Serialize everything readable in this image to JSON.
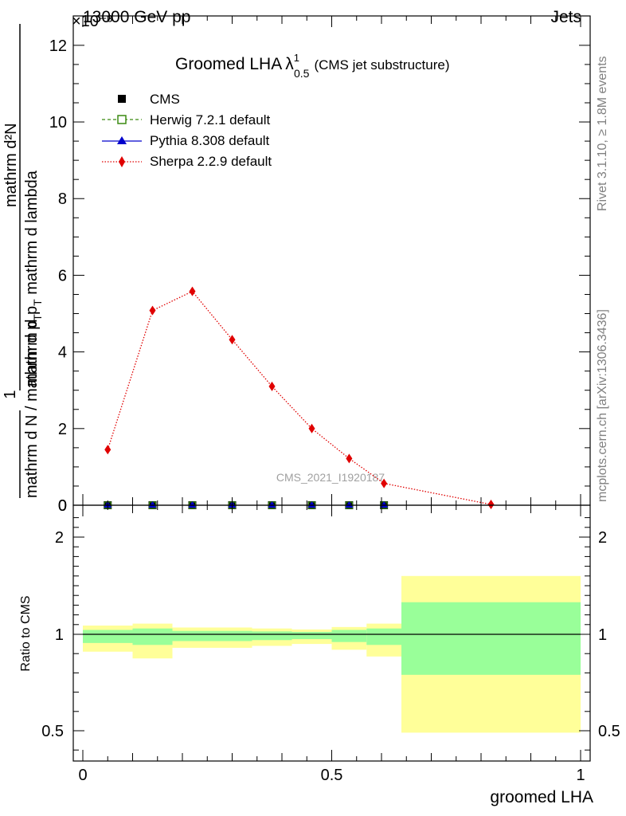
{
  "header": {
    "collision": "13000 GeV pp",
    "process": "Jets",
    "exponent_label": "×10⁻³"
  },
  "side_labels": {
    "rivet": "Rivet 3.1.10, ≥ 1.8M events",
    "mcplots": "mcplots.cern.ch [arXiv:1306.3436]"
  },
  "watermark": "CMS_2021_I1920187",
  "chart_data": [
    {
      "type": "line",
      "title": "Groomed LHA",
      "title_symbol": "λ",
      "title_sup": "1",
      "title_sub": "0.5",
      "subtitle": "(CMS jet substructure)",
      "ylabel_numerator": "mathrm d²N",
      "ylabel_numerator_sub": "mathrm d p",
      "ylabel_numerator_sub2": "T",
      "ylabel_numerator_tail": " mathrm d lambda",
      "ylabel_denominator": "mathrm d N / mathrm d p",
      "ylabel_denominator_sub": "T",
      "ylabel_one": "1",
      "ylabel_full": "1/(mathrm d N / mathrm d p_T) mathrm d²N/(mathrm d p_T mathrm d lambda)",
      "xlim": [
        0,
        1
      ],
      "ylim": [
        0,
        12.6
      ],
      "ytick_values": [
        0,
        2,
        4,
        6,
        8,
        10,
        12
      ],
      "ytick_labels": [
        "0",
        "2",
        "4",
        "6",
        "8",
        "10",
        "12"
      ],
      "legend_position": "top-left",
      "bin_edges": [
        0.0,
        0.1,
        0.18,
        0.26,
        0.34,
        0.42,
        0.5,
        0.57,
        0.64,
        1.0
      ],
      "series": [
        {
          "name": "CMS",
          "style": "data",
          "color": "#000000",
          "x": [
            0.05,
            0.14,
            0.22,
            0.3,
            0.38,
            0.46,
            0.535,
            0.605
          ],
          "values": [
            0.0,
            0.0,
            0.0,
            0.0,
            0.0,
            0.0,
            0.0,
            0.0
          ]
        },
        {
          "name": "Herwig 7.2.1 default",
          "style": "open-square-dashed",
          "color": "#3a8a10",
          "x": [
            0.05,
            0.14,
            0.22,
            0.3,
            0.38,
            0.46,
            0.535,
            0.605
          ],
          "values": [
            0.0,
            0.0,
            0.0,
            0.0,
            0.0,
            0.0,
            0.0,
            0.0
          ]
        },
        {
          "name": "Pythia 8.308 default",
          "style": "triangle-solid",
          "color": "#0000cc",
          "x": [
            0.05,
            0.14,
            0.22,
            0.3,
            0.38,
            0.46,
            0.535,
            0.605
          ],
          "values": [
            0.0,
            0.0,
            0.0,
            0.0,
            0.0,
            0.0,
            0.0,
            0.0
          ]
        },
        {
          "name": "Sherpa 2.2.9 default",
          "style": "diamond-dotted",
          "color": "#e00000",
          "x": [
            0.05,
            0.14,
            0.22,
            0.3,
            0.38,
            0.46,
            0.535,
            0.605,
            0.82
          ],
          "values": [
            1.45,
            5.08,
            5.58,
            4.32,
            3.1,
            2.0,
            1.22,
            0.57,
            0.02
          ]
        }
      ]
    },
    {
      "type": "area",
      "title": "ratio panel",
      "ylabel": "Ratio to CMS",
      "xlabel": "groomed LHA",
      "xlim": [
        0,
        1
      ],
      "ylim": [
        0.35,
        2.25
      ],
      "ytick_values": [
        0.5,
        1,
        2
      ],
      "ytick_labels": [
        "0.5",
        "1",
        "2"
      ],
      "xtick_values": [
        0,
        0.5,
        1
      ],
      "xtick_labels": [
        "0",
        "0.5",
        "1"
      ],
      "reference_line": 1,
      "bins": [
        {
          "lo": 0.0,
          "hi": 0.1,
          "stat": [
            0.955,
            1.045
          ],
          "total": [
            0.91,
            1.09
          ]
        },
        {
          "lo": 0.1,
          "hi": 0.18,
          "stat": [
            0.945,
            1.06
          ],
          "total": [
            0.875,
            1.11
          ]
        },
        {
          "lo": 0.18,
          "hi": 0.26,
          "stat": [
            0.965,
            1.035
          ],
          "total": [
            0.93,
            1.07
          ]
        },
        {
          "lo": 0.26,
          "hi": 0.34,
          "stat": [
            0.965,
            1.035
          ],
          "total": [
            0.93,
            1.07
          ]
        },
        {
          "lo": 0.34,
          "hi": 0.42,
          "stat": [
            0.97,
            1.03
          ],
          "total": [
            0.94,
            1.06
          ]
        },
        {
          "lo": 0.42,
          "hi": 0.5,
          "stat": [
            0.975,
            1.025
          ],
          "total": [
            0.95,
            1.05
          ]
        },
        {
          "lo": 0.5,
          "hi": 0.57,
          "stat": [
            0.96,
            1.045
          ],
          "total": [
            0.92,
            1.075
          ]
        },
        {
          "lo": 0.57,
          "hi": 0.64,
          "stat": [
            0.945,
            1.06
          ],
          "total": [
            0.885,
            1.11
          ]
        },
        {
          "lo": 0.64,
          "hi": 1.0,
          "stat": [
            0.79,
            1.33
          ],
          "total": [
            0.49,
            1.6
          ]
        }
      ]
    }
  ],
  "colors": {
    "stat_band": "#99ff99",
    "total_band": "#ffff99",
    "watermark": "#a0a0a0"
  }
}
